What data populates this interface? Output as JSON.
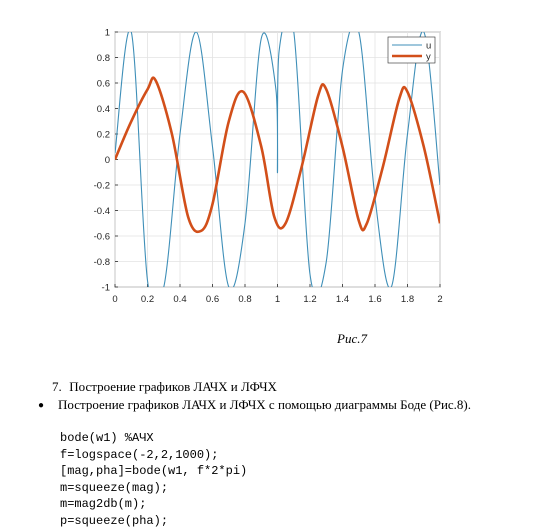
{
  "figure": {
    "chart_data": {
      "type": "line",
      "xlim": [
        0,
        2
      ],
      "ylim": [
        -1,
        1
      ],
      "xticks": [
        "0",
        "0.2",
        "0.4",
        "0.6",
        "0.8",
        "1",
        "1.2",
        "1.4",
        "1.6",
        "1.8",
        "2"
      ],
      "yticks": [
        "-1",
        "-0.8",
        "-0.6",
        "-0.4",
        "-0.2",
        "0",
        "0.2",
        "0.4",
        "0.6",
        "0.8",
        "1"
      ],
      "grid": true,
      "legend_position": "top-right",
      "series": [
        {
          "name": "u",
          "color": "#3f8fb8",
          "points": [
            [
              0,
              0.05
            ],
            [
              0.1,
              1
            ],
            [
              0.2,
              -0.95
            ],
            [
              0.3,
              -1
            ],
            [
              0.4,
              0.2
            ],
            [
              0.5,
              1
            ],
            [
              0.6,
              0.1
            ],
            [
              0.7,
              -1
            ],
            [
              0.8,
              -0.5
            ],
            [
              0.9,
              0.95
            ],
            [
              0.99,
              0.55
            ],
            [
              1.0,
              -0.1
            ],
            [
              1.01,
              0.85
            ],
            [
              1.1,
              1
            ],
            [
              1.2,
              -0.9
            ],
            [
              1.3,
              -0.8
            ],
            [
              1.4,
              0.7
            ],
            [
              1.5,
              1
            ],
            [
              1.6,
              -0.3
            ],
            [
              1.7,
              -1
            ],
            [
              1.8,
              0.2
            ],
            [
              1.9,
              1
            ],
            [
              2.0,
              -0.2
            ]
          ]
        },
        {
          "name": "y",
          "color": "#d24f1a",
          "points": [
            [
              0,
              0.0
            ],
            [
              0.1,
              0.3
            ],
            [
              0.2,
              0.55
            ],
            [
              0.25,
              0.62
            ],
            [
              0.35,
              0.2
            ],
            [
              0.45,
              -0.45
            ],
            [
              0.53,
              -0.56
            ],
            [
              0.6,
              -0.35
            ],
            [
              0.7,
              0.3
            ],
            [
              0.79,
              0.53
            ],
            [
              0.9,
              0.1
            ],
            [
              0.98,
              -0.45
            ],
            [
              1.05,
              -0.5
            ],
            [
              1.15,
              -0.05
            ],
            [
              1.25,
              0.5
            ],
            [
              1.3,
              0.55
            ],
            [
              1.4,
              0.1
            ],
            [
              1.5,
              -0.48
            ],
            [
              1.55,
              -0.5
            ],
            [
              1.65,
              -0.05
            ],
            [
              1.75,
              0.48
            ],
            [
              1.8,
              0.53
            ],
            [
              1.9,
              0.1
            ],
            [
              2.0,
              -0.5
            ]
          ]
        }
      ]
    }
  },
  "caption": "Рис.7",
  "heading": {
    "number": "7.",
    "text": "Построение графиков ЛАЧХ и ЛФЧХ"
  },
  "bullet": {
    "symbol": "●",
    "text": "Построение графиков ЛАЧХ и ЛФЧХ с помощью диаграммы Боде (Рис.8)."
  },
  "code": [
    "bode(w1) %АЧХ",
    "f=logspace(-2,2,1000);",
    "[mag,pha]=bode(w1, f*2*pi)",
    "m=squeeze(mag);",
    "m=mag2db(m);",
    "p=squeeze(pha);"
  ]
}
